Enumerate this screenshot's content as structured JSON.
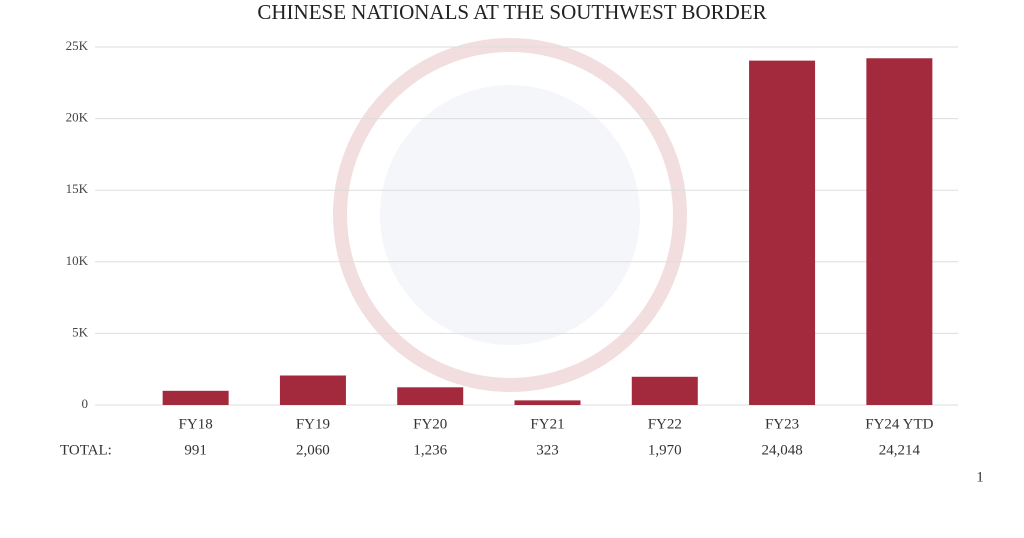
{
  "chart_data": {
    "type": "bar",
    "title": "CHINESE NATIONALS AT THE SOUTHWEST BORDER",
    "categories": [
      "FY18",
      "FY19",
      "FY20",
      "FY21",
      "FY22",
      "FY23",
      "FY24 YTD"
    ],
    "values": [
      991,
      2060,
      1236,
      323,
      1970,
      24048,
      24214
    ],
    "value_labels": [
      "991",
      "2,060",
      "1,236",
      "323",
      "1,970",
      "24,048",
      "24,214"
    ],
    "total_label": "TOTAL:",
    "color": "#a32a3c",
    "ylim": [
      0,
      25000
    ],
    "yticks": [
      0,
      {
        "value": 5000,
        "label": "5K"
      },
      {
        "value": 10000,
        "label": "10K"
      },
      {
        "value": 15000,
        "label": "15K"
      },
      {
        "value": 20000,
        "label": "20K"
      },
      {
        "value": 25000,
        "label": "25K"
      }
    ],
    "grid": true
  },
  "page_number": "1"
}
